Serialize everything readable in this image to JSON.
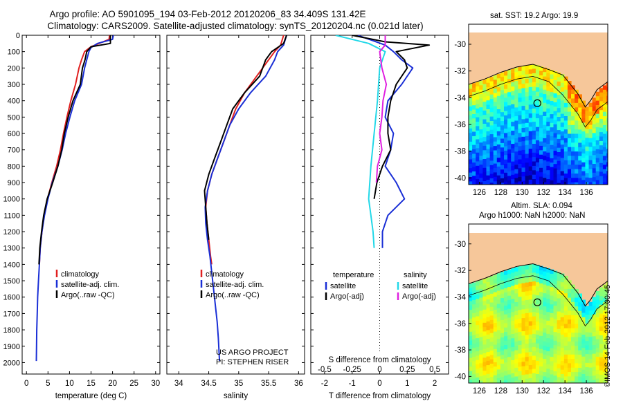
{
  "header": {
    "title_line1": "Argo profile: AO 5901095_194 03-Feb-2012 20120206_83 34.409S 131.42E",
    "title_line2": "Climatology: CARS2009. Satellite-adjusted climatology: synTS_20120204.nc (0.021d later)"
  },
  "stamp": "©IMOS 14-Feb-2012 17:00:45",
  "colors": {
    "climatology": "#e02020",
    "satellite": "#1a2fd6",
    "argo": "#000000",
    "sal_satellite": "#22d8e8",
    "sal_argo": "#e020e0",
    "land": "#f6c79a"
  },
  "chart_data": [
    {
      "type": "line",
      "id": "temperature-profile",
      "xlabel": "temperature (deg C)",
      "ylabel": "",
      "xlim": [
        -1,
        31
      ],
      "ylim": [
        0,
        2070
      ],
      "y_inverted": true,
      "x_ticks": [
        0,
        5,
        10,
        15,
        20,
        25,
        30
      ],
      "y_ticks": [
        0,
        100,
        200,
        300,
        400,
        500,
        600,
        700,
        800,
        900,
        1000,
        1100,
        1200,
        1300,
        1400,
        1500,
        1600,
        1700,
        1800,
        1900,
        2000
      ],
      "legend": [
        "climatology",
        "satellite-adj. clim.",
        "Argo(..raw -QC)"
      ],
      "series": [
        {
          "name": "climatology",
          "color": "#e02020",
          "points": [
            [
              19.3,
              0
            ],
            [
              19.2,
              25
            ],
            [
              15,
              70
            ],
            [
              13.5,
              100
            ],
            [
              12.8,
              150
            ],
            [
              12.2,
              200
            ],
            [
              11.4,
              300
            ],
            [
              10.3,
              400
            ],
            [
              9.4,
              500
            ],
            [
              8.6,
              600
            ],
            [
              7.9,
              700
            ],
            [
              7.0,
              800
            ],
            [
              5.9,
              900
            ],
            [
              4.9,
              1000
            ],
            [
              4.1,
              1100
            ],
            [
              3.6,
              1200
            ],
            [
              3.2,
              1300
            ],
            [
              3.0,
              1400
            ]
          ]
        },
        {
          "name": "satellite-adj. clim.",
          "color": "#1a2fd6",
          "points": [
            [
              20.2,
              0
            ],
            [
              20.0,
              25
            ],
            [
              16.5,
              50
            ],
            [
              15,
              75
            ],
            [
              14.5,
              100
            ],
            [
              14,
              150
            ],
            [
              13.5,
              200
            ],
            [
              12.8,
              300
            ],
            [
              11.2,
              400
            ],
            [
              10.1,
              500
            ],
            [
              9.1,
              600
            ],
            [
              8.3,
              700
            ],
            [
              7.3,
              800
            ],
            [
              6.0,
              900
            ],
            [
              5.0,
              1000
            ],
            [
              4.2,
              1100
            ],
            [
              3.6,
              1200
            ],
            [
              3.2,
              1300
            ],
            [
              3.0,
              1400
            ],
            [
              2.8,
              1500
            ],
            [
              2.6,
              1600
            ],
            [
              2.5,
              1700
            ],
            [
              2.4,
              1800
            ],
            [
              2.35,
              1900
            ],
            [
              2.3,
              1990
            ]
          ]
        },
        {
          "name": "Argo(..raw -QC)",
          "color": "#000000",
          "points": [
            [
              19.5,
              0
            ],
            [
              19.5,
              50
            ],
            [
              15,
              70
            ],
            [
              14,
              100
            ],
            [
              13.6,
              150
            ],
            [
              13,
              200
            ],
            [
              12.5,
              300
            ],
            [
              10.8,
              400
            ],
            [
              9.7,
              500
            ],
            [
              8.8,
              600
            ],
            [
              8.2,
              700
            ],
            [
              7.3,
              800
            ],
            [
              6.1,
              900
            ],
            [
              4.8,
              1000
            ],
            [
              4.0,
              1100
            ],
            [
              3.5,
              1200
            ],
            [
              3.1,
              1300
            ],
            [
              2.9,
              1400
            ]
          ]
        }
      ]
    },
    {
      "type": "line",
      "id": "salinity-profile",
      "xlabel": "salinity",
      "ylabel": "",
      "xlim": [
        33.8,
        36.1
      ],
      "ylim": [
        0,
        2070
      ],
      "y_inverted": true,
      "x_ticks": [
        34,
        34.5,
        35,
        35.5,
        36
      ],
      "x_tick_labels": [
        "34",
        "34.5",
        "35",
        "35.5",
        "36"
      ],
      "legend": [
        "climatology",
        "satellite-adj. clim.",
        "Argo(..raw -QC)"
      ],
      "annotation": [
        "US ARGO PROJECT",
        "PI: STEPHEN RISER"
      ],
      "series": [
        {
          "name": "climatology",
          "color": "#e02020",
          "points": [
            [
              35.75,
              0
            ],
            [
              35.7,
              60
            ],
            [
              35.6,
              100
            ],
            [
              35.5,
              150
            ],
            [
              35.3,
              250
            ],
            [
              35.1,
              350
            ],
            [
              34.95,
              450
            ],
            [
              34.85,
              550
            ],
            [
              34.75,
              650
            ],
            [
              34.65,
              750
            ],
            [
              34.55,
              850
            ],
            [
              34.48,
              950
            ],
            [
              34.45,
              1050
            ],
            [
              34.47,
              1150
            ],
            [
              34.5,
              1250
            ],
            [
              34.53,
              1350
            ],
            [
              34.55,
              1400
            ]
          ]
        },
        {
          "name": "satellite-adj. clim.",
          "color": "#1a2fd6",
          "points": [
            [
              35.8,
              0
            ],
            [
              35.75,
              60
            ],
            [
              35.65,
              100
            ],
            [
              35.6,
              150
            ],
            [
              35.45,
              250
            ],
            [
              35.2,
              350
            ],
            [
              35.0,
              450
            ],
            [
              34.85,
              550
            ],
            [
              34.75,
              650
            ],
            [
              34.65,
              750
            ],
            [
              34.55,
              850
            ],
            [
              34.48,
              950
            ],
            [
              34.44,
              1050
            ],
            [
              34.45,
              1150
            ],
            [
              34.48,
              1250
            ],
            [
              34.52,
              1350
            ],
            [
              34.55,
              1450
            ],
            [
              34.58,
              1550
            ],
            [
              34.61,
              1650
            ],
            [
              34.64,
              1750
            ],
            [
              34.66,
              1850
            ],
            [
              34.68,
              1990
            ]
          ]
        },
        {
          "name": "Argo(..raw -QC)",
          "color": "#000000",
          "points": [
            [
              35.8,
              0
            ],
            [
              35.75,
              50
            ],
            [
              35.55,
              100
            ],
            [
              35.45,
              150
            ],
            [
              35.35,
              250
            ],
            [
              35.1,
              350
            ],
            [
              34.9,
              450
            ],
            [
              34.8,
              550
            ],
            [
              34.7,
              650
            ],
            [
              34.6,
              750
            ],
            [
              34.5,
              850
            ],
            [
              34.43,
              950
            ],
            [
              34.45,
              1050
            ],
            [
              34.47,
              1150
            ],
            [
              34.5,
              1250
            ]
          ]
        }
      ]
    },
    {
      "type": "line",
      "id": "difference-profile",
      "xlabel": "T difference from climatology",
      "xlabel_top": "S difference from climatology",
      "xlim": [
        -2.5,
        2.5
      ],
      "ylim": [
        0,
        2070
      ],
      "y_inverted": true,
      "x_ticks": [
        -2,
        -1,
        0,
        1,
        2
      ],
      "x_tick_labels": [
        "-2",
        "-1",
        "0",
        "1",
        "2"
      ],
      "x2_ticks": [
        -0.5,
        -0.25,
        0,
        0.25,
        0.5
      ],
      "x2_tick_labels": [
        "-0.5",
        "-0.25",
        "0",
        "0.25",
        "0.5"
      ],
      "legend_left_title": "temperature",
      "legend_right_title": "salinity",
      "legend_left": [
        "satellite",
        "Argo(-adj)"
      ],
      "legend_right": [
        "satellite",
        "Argo(-adj)"
      ],
      "series": [
        {
          "name": "satellite",
          "group": "temperature",
          "color": "#1a2fd6",
          "points": [
            [
              -0.8,
              0
            ],
            [
              -0.3,
              30
            ],
            [
              0.2,
              60
            ],
            [
              0.5,
              100
            ],
            [
              0.8,
              150
            ],
            [
              1.2,
              200
            ],
            [
              0.8,
              300
            ],
            [
              0.3,
              400
            ],
            [
              0.2,
              500
            ],
            [
              0.5,
              600
            ],
            [
              0.4,
              700
            ],
            [
              0.2,
              800
            ],
            [
              0.6,
              900
            ],
            [
              0.9,
              1000
            ],
            [
              0.3,
              1100
            ],
            [
              0.1,
              1200
            ],
            [
              0.1,
              1300
            ]
          ]
        },
        {
          "name": "Argo(-adj)",
          "group": "temperature",
          "color": "#000000",
          "points": [
            [
              -1.0,
              0
            ],
            [
              0.2,
              40
            ],
            [
              1.8,
              60
            ],
            [
              0.6,
              100
            ],
            [
              0.9,
              150
            ],
            [
              1.0,
              200
            ],
            [
              0.6,
              300
            ],
            [
              0.4,
              400
            ],
            [
              0.3,
              500
            ],
            [
              0.3,
              600
            ],
            [
              0.4,
              700
            ],
            [
              0.1,
              800
            ],
            [
              -0.1,
              900
            ],
            [
              -0.2,
              1000
            ]
          ]
        },
        {
          "name": "satellite",
          "group": "salinity",
          "color": "#22d8e8",
          "points": [
            [
              -0.4,
              0
            ],
            [
              -0.1,
              50
            ],
            [
              0.05,
              100
            ],
            [
              0.0,
              200
            ],
            [
              -0.02,
              400
            ],
            [
              -0.05,
              600
            ],
            [
              -0.08,
              800
            ],
            [
              -0.1,
              1000
            ],
            [
              -0.08,
              1100
            ],
            [
              -0.06,
              1200
            ],
            [
              -0.05,
              1300
            ]
          ]
        },
        {
          "name": "Argo(-adj)",
          "group": "salinity",
          "color": "#e020e0",
          "points": [
            [
              0.05,
              0
            ],
            [
              0.05,
              60
            ],
            [
              0.0,
              100
            ],
            [
              0.02,
              200
            ],
            [
              0.06,
              300
            ],
            [
              0.03,
              400
            ],
            [
              0.02,
              500
            ],
            [
              0.0,
              600
            ],
            [
              0.02,
              700
            ],
            [
              -0.02,
              800
            ],
            [
              -0.03,
              900
            ]
          ]
        }
      ]
    },
    {
      "type": "heatmap",
      "id": "sst-map",
      "title": "sat. SST: 19.2  Argo: 19.9",
      "x_ticks": [
        126,
        128,
        130,
        132,
        134,
        136
      ],
      "y_ticks": [
        -30,
        -32,
        -34,
        -36,
        -38,
        -40
      ],
      "xlim": [
        125,
        138
      ],
      "ylim": [
        -40.5,
        -28.5
      ],
      "argo_position": [
        131.42,
        -34.409
      ]
    },
    {
      "type": "heatmap",
      "id": "sla-map",
      "title_line1": "Altim. SLA: 0.094",
      "title_line2": "Argo h1000: NaN h2000: NaN",
      "x_ticks": [
        126,
        128,
        130,
        132,
        134,
        136
      ],
      "y_ticks": [
        -30,
        -32,
        -34,
        -36,
        -38,
        -40
      ],
      "xlim": [
        125,
        138
      ],
      "ylim": [
        -40.5,
        -28.5
      ],
      "argo_position": [
        131.42,
        -34.409
      ]
    }
  ]
}
